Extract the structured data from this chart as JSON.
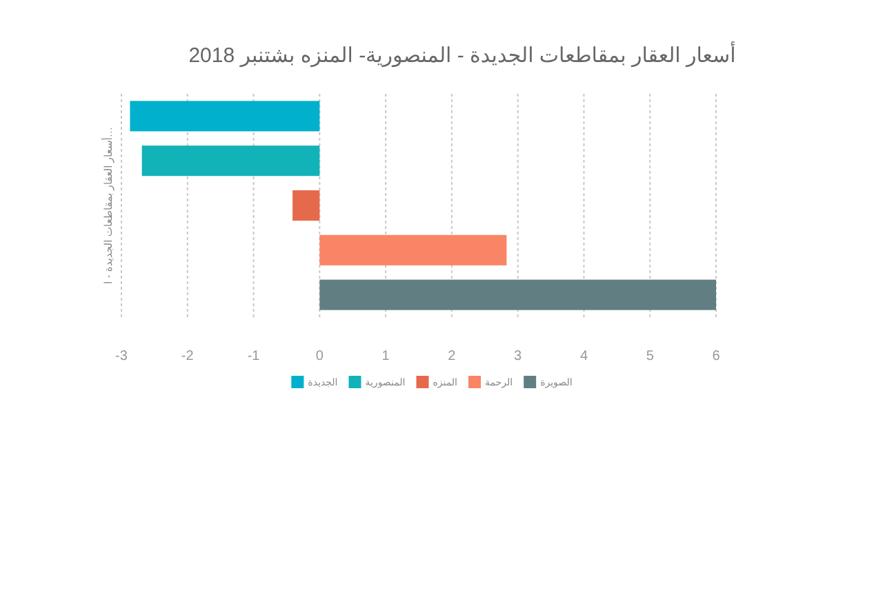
{
  "chart_data": {
    "type": "bar",
    "orientation": "horizontal",
    "title": "أسعار العقار بمقاطعات الجديدة - المنصورية- المنزه بشتنبر 2018",
    "ylabel": "أسعار العقار بمقاطعات الجديدة - ا…",
    "categories": [
      null
    ],
    "series": [
      {
        "name": "الجديدة",
        "color": "#00b0cc",
        "values": [
          -2.87
        ]
      },
      {
        "name": "المنصورية",
        "color": "#12b2b9",
        "values": [
          -2.69
        ]
      },
      {
        "name": "المنزه",
        "color": "#e56a4c",
        "values": [
          -0.41
        ]
      },
      {
        "name": "الرحمة",
        "color": "#f98466",
        "values": [
          2.83
        ]
      },
      {
        "name": "الصويرة",
        "color": "#617f82",
        "values": [
          6
        ]
      }
    ],
    "xlim": [
      -3,
      6
    ],
    "xticks": [
      -3,
      -2,
      -1,
      0,
      1,
      2,
      3,
      4,
      5,
      6
    ],
    "grid": "x",
    "legend": "bottom"
  }
}
